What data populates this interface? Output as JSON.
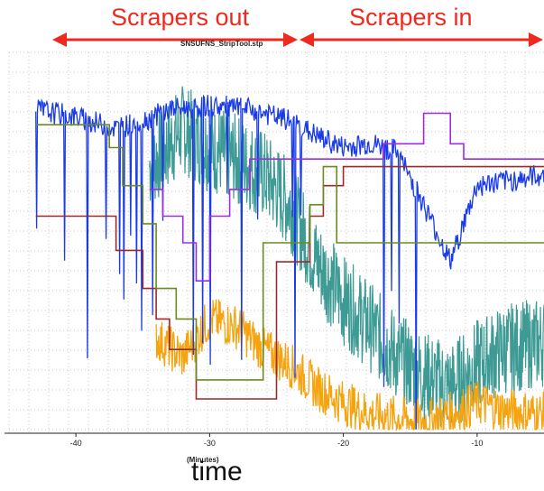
{
  "annotations": {
    "left": "Scrapers out",
    "right": "Scrapers in"
  },
  "colors": {
    "annotation": "#ee2a1f",
    "blue": "#1a3be8",
    "teal": "#3d9a94",
    "orange": "#f5a30f",
    "purple": "#9b2fe0",
    "darkred": "#9c2a2a",
    "olive": "#6b8c1c"
  },
  "chart_data": {
    "type": "line",
    "title": "SNSUFNS_StripTool.stp",
    "xlabel": "time",
    "x_unit": "(Minutes)",
    "xlim": [
      -45,
      -5
    ],
    "x_ticks": [
      "-40",
      "-30",
      "-20",
      "-10"
    ],
    "ylim": [
      0,
      100
    ],
    "grid": true,
    "series": [
      {
        "color": "#9b2fe0",
        "style": "step",
        "x": [
          -34.5,
          -33.5,
          -33.5,
          -32,
          -32,
          -31,
          -31,
          -30,
          -30,
          -28.5,
          -28.5,
          -27,
          -27,
          -22,
          -22,
          -17,
          -17,
          -14,
          -14,
          -12,
          -12,
          -11,
          -11,
          -5
        ],
        "y": [
          64,
          64,
          57,
          57,
          50,
          50,
          40,
          40,
          57,
          57,
          64,
          64,
          72,
          72,
          72,
          72,
          76,
          76,
          84,
          84,
          76,
          76,
          72,
          72
        ]
      },
      {
        "color": "#9c2a2a",
        "style": "step",
        "x": [
          -43,
          -37,
          -37,
          -35,
          -35,
          -34,
          -34,
          -33,
          -33,
          -31,
          -31,
          -25,
          -25,
          -22.5,
          -22.5,
          -21.5,
          -21.5,
          -20,
          -20,
          -5
        ],
        "y": [
          57,
          57,
          48,
          48,
          38,
          38,
          30,
          30,
          22,
          22,
          9,
          9,
          45,
          45,
          57,
          57,
          65,
          65,
          70,
          70
        ]
      },
      {
        "color": "#6b8c1c",
        "style": "step",
        "x": [
          -43,
          -37.5,
          -37.5,
          -36.5,
          -36.5,
          -35,
          -35,
          -34,
          -34,
          -32.5,
          -32.5,
          -31,
          -31,
          -26,
          -26,
          -22.5,
          -22.5,
          -21.5,
          -21.5,
          -20.5,
          -20.5,
          -5
        ],
        "y": [
          81,
          81,
          75,
          75,
          65,
          65,
          55,
          55,
          38,
          38,
          30,
          30,
          14,
          14,
          50,
          50,
          60,
          60,
          70,
          70,
          50,
          50
        ]
      }
    ],
    "noise_series": [
      {
        "color": "#3d9a94",
        "description": "dense fluctuating signal",
        "x": [
          -34.5,
          -32,
          -30,
          -28,
          -26,
          -24,
          -22,
          -20,
          -18,
          -16,
          -14,
          -12,
          -10,
          -8,
          -5
        ],
        "y": [
          70,
          80,
          75,
          72,
          68,
          60,
          45,
          35,
          28,
          20,
          15,
          12,
          18,
          22,
          24
        ],
        "amplitude": 12
      },
      {
        "color": "#f5a30f",
        "description": "low fluctuating signal",
        "x": [
          -34,
          -32,
          -30,
          -28,
          -26,
          -24,
          -22,
          -20,
          -18,
          -16,
          -14,
          -12,
          -10,
          -8,
          -5
        ],
        "y": [
          25,
          20,
          30,
          28,
          22,
          18,
          12,
          8,
          5,
          4,
          3,
          5,
          8,
          6,
          5
        ],
        "amplitude": 6
      },
      {
        "color": "#1a3be8",
        "description": "high signal with spikes",
        "x": [
          -43,
          -40,
          -37,
          -35,
          -33,
          -30,
          -27,
          -24,
          -22,
          -20,
          -18,
          -16,
          -14,
          -12,
          -10,
          -8,
          -5
        ],
        "y": [
          85,
          83,
          80,
          82,
          85,
          86,
          85,
          82,
          78,
          75,
          76,
          74,
          60,
          45,
          65,
          66,
          68
        ],
        "amplitude": 3
      }
    ]
  }
}
